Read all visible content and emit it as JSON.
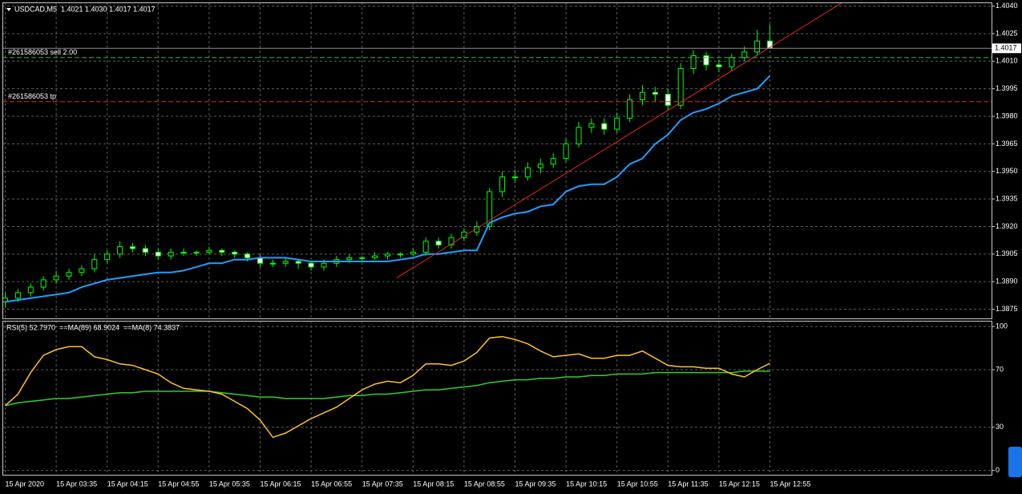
{
  "chart_data": [
    {
      "type": "candlestick",
      "title": "USDCAD,M5  1.4021 1.4030 1.4017 1.4017",
      "categories": [
        "15 Apr 2020",
        null,
        null,
        null,
        "15 Apr 03:35",
        null,
        null,
        null,
        "15 Apr 04:15",
        null,
        null,
        null,
        "15 Apr 04:55",
        null,
        null,
        null,
        "15 Apr 05:35",
        null,
        null,
        null,
        "15 Apr 06:15",
        null,
        null,
        null,
        "15 Apr 06:55",
        null,
        null,
        null,
        "15 Apr 07:35",
        null,
        null,
        null,
        "15 Apr 08:15",
        null,
        null,
        null,
        "15 Apr 08:55",
        null,
        null,
        null,
        "15 Apr 09:35",
        null,
        null,
        null,
        "15 Apr 10:15",
        null,
        null,
        null,
        "15 Apr 10:55",
        null,
        null,
        null,
        "15 Apr 11:35",
        null,
        null,
        null,
        "15 Apr 12:15",
        null,
        null,
        null,
        "15 Apr 12:55"
      ],
      "open": [
        1.3879,
        1.3881,
        1.3884,
        1.3887,
        1.3891,
        1.3893,
        1.3895,
        1.3897,
        1.3902,
        1.3905,
        1.3909,
        1.3908,
        1.3906,
        1.3904,
        1.3906,
        1.3906,
        1.3906,
        1.3907,
        1.3906,
        1.3905,
        1.3903,
        1.39,
        1.39,
        1.3901,
        1.39,
        1.3898,
        1.39,
        1.3902,
        1.3903,
        1.3903,
        1.3904,
        1.3905,
        1.3905,
        1.3906,
        1.3912,
        1.391,
        1.3914,
        1.3917,
        1.392,
        1.3939,
        1.3947,
        1.3947,
        1.3952,
        1.3954,
        1.3957,
        1.3965,
        1.3974,
        1.3976,
        1.3973,
        1.3979,
        1.3989,
        1.3993,
        1.3992,
        1.3986,
        1.4006,
        1.4013,
        1.4008,
        1.4007,
        1.4012,
        1.4015,
        1.4021
      ],
      "high": [
        1.3884,
        1.3886,
        1.3889,
        1.3893,
        1.3896,
        1.3897,
        1.3899,
        1.3905,
        1.3907,
        1.3912,
        1.3911,
        1.391,
        1.3908,
        1.3908,
        1.3908,
        1.3907,
        1.3909,
        1.3908,
        1.3907,
        1.3906,
        1.3905,
        1.3902,
        1.3903,
        1.3902,
        1.3901,
        1.3902,
        1.3904,
        1.3905,
        1.3904,
        1.3906,
        1.3906,
        1.3906,
        1.3908,
        1.3914,
        1.3914,
        1.3916,
        1.3919,
        1.3923,
        1.3941,
        1.395,
        1.3951,
        1.3955,
        1.3957,
        1.396,
        1.3968,
        1.3977,
        1.3979,
        1.3979,
        1.3982,
        1.3992,
        1.3997,
        1.3996,
        1.3995,
        1.4009,
        1.4016,
        1.4015,
        1.4011,
        1.4014,
        1.4018,
        1.4027,
        1.403
      ],
      "low": [
        1.3876,
        1.3879,
        1.3882,
        1.3885,
        1.3889,
        1.3891,
        1.3893,
        1.3895,
        1.39,
        1.3903,
        1.3906,
        1.3904,
        1.3902,
        1.3902,
        1.3904,
        1.3904,
        1.3905,
        1.3904,
        1.3903,
        1.3901,
        1.3898,
        1.3898,
        1.3898,
        1.3897,
        1.3896,
        1.3896,
        1.3898,
        1.39,
        1.3901,
        1.3902,
        1.3902,
        1.3903,
        1.3904,
        1.3904,
        1.3908,
        1.3908,
        1.3912,
        1.3915,
        1.3918,
        1.3936,
        1.3944,
        1.3945,
        1.3949,
        1.3952,
        1.3955,
        1.3963,
        1.3971,
        1.397,
        1.3971,
        1.3977,
        1.3986,
        1.3988,
        1.3983,
        1.3984,
        1.4003,
        1.4005,
        1.4004,
        1.4005,
        1.401,
        1.4013,
        1.4017
      ],
      "close": [
        1.3881,
        1.3884,
        1.3887,
        1.3891,
        1.3893,
        1.3895,
        1.3897,
        1.3902,
        1.3905,
        1.3909,
        1.3908,
        1.3906,
        1.3904,
        1.3906,
        1.3906,
        1.3906,
        1.3907,
        1.3906,
        1.3905,
        1.3903,
        1.39,
        1.39,
        1.3901,
        1.39,
        1.3898,
        1.39,
        1.3902,
        1.3903,
        1.3903,
        1.3904,
        1.3905,
        1.3905,
        1.3906,
        1.3912,
        1.391,
        1.3914,
        1.3917,
        1.392,
        1.3939,
        1.3947,
        1.3947,
        1.3952,
        1.3954,
        1.3957,
        1.3965,
        1.3974,
        1.3976,
        1.3973,
        1.3979,
        1.3989,
        1.3993,
        1.3992,
        1.3986,
        1.4006,
        1.4013,
        1.4008,
        1.4007,
        1.4012,
        1.4015,
        1.4021,
        1.4017
      ],
      "wick_color": "#00ff00",
      "up_fill": "#000000",
      "down_fill": "#ffffff",
      "lines": [
        {
          "color": "#1e9fff",
          "values": [
            1.3879,
            1.388,
            1.3881,
            1.3882,
            1.3883,
            1.3884,
            1.3887,
            1.3889,
            1.3891,
            1.3892,
            1.3893,
            1.3894,
            1.3895,
            1.3895,
            1.3896,
            1.3898,
            1.39,
            1.39,
            1.3902,
            1.3902,
            1.3903,
            1.3903,
            1.3903,
            1.3902,
            1.3901,
            1.3901,
            1.3901,
            1.3901,
            1.3901,
            1.3901,
            1.3901,
            1.3902,
            1.3903,
            1.3905,
            1.3905,
            1.3906,
            1.3907,
            1.3907,
            1.3922,
            1.3925,
            1.3927,
            1.3928,
            1.3931,
            1.3932,
            1.3939,
            1.3942,
            1.3943,
            1.3943,
            1.3947,
            1.3954,
            1.3957,
            1.3965,
            1.397,
            1.3978,
            1.3982,
            1.3984,
            1.3987,
            1.3991,
            1.3993,
            1.3995,
            1.4002
          ]
        }
      ],
      "trendline": {
        "x": [
          30.7,
          65.7
        ],
        "y": [
          1.3892,
          1.4042
        ],
        "color": "#e0281e"
      },
      "orders": [
        {
          "label": "#261586053 sell 2.00",
          "price": 1.4012,
          "color": "#3cb043"
        },
        {
          "label": "#261586053 tp",
          "price": 1.3988,
          "color": "#e0281e"
        }
      ],
      "bid": {
        "value": 1.4017,
        "label": "1.4017"
      },
      "ylim": [
        1.387,
        1.4042
      ],
      "yticks": [
        {
          "value": 1.404,
          "label": "1.4040"
        },
        {
          "value": 1.4025,
          "label": "1.4025"
        },
        {
          "value": 1.401,
          "label": "1.4010"
        },
        {
          "value": 1.3995,
          "label": "1.3995"
        },
        {
          "value": 1.398,
          "label": "1.3980"
        },
        {
          "value": 1.3965,
          "label": "1.3965"
        },
        {
          "value": 1.395,
          "label": "1.3950"
        },
        {
          "value": 1.3935,
          "label": "1.3935"
        },
        {
          "value": 1.392,
          "label": "1.3920"
        },
        {
          "value": 1.3905,
          "label": "1.3905"
        },
        {
          "value": 1.389,
          "label": "1.3890"
        },
        {
          "value": 1.3875,
          "label": "1.3875"
        }
      ],
      "grid": true
    },
    {
      "type": "line",
      "title": "RSI(5) 52.7970  ==MA(89) 68.9024  ==MA(8) 74.3837",
      "series": [
        {
          "color": "#32cd32",
          "values": [
            45,
            47,
            48,
            49,
            50,
            50,
            51,
            52,
            53,
            54,
            54,
            55,
            55,
            55,
            55,
            55,
            55,
            54,
            53,
            52,
            51,
            51,
            50,
            50,
            50,
            50,
            51,
            52,
            52,
            53,
            53,
            54,
            55,
            56,
            56,
            57,
            58,
            59,
            61,
            62,
            63,
            63,
            64,
            64,
            65,
            65,
            66,
            66,
            67,
            67,
            67,
            68,
            68,
            68,
            68,
            68,
            68,
            68,
            69,
            69,
            68.9024
          ]
        },
        {
          "color": "#ffc125",
          "values": [
            45,
            53,
            68,
            80,
            84,
            86,
            86,
            79,
            77,
            74,
            73,
            70,
            67,
            61,
            57,
            56,
            55,
            53,
            48,
            43,
            35,
            23,
            26,
            31,
            36,
            40,
            44,
            50,
            56,
            60,
            62,
            61,
            66,
            74,
            74,
            73,
            76,
            82,
            92,
            93,
            91,
            88,
            83,
            79,
            80,
            81,
            78,
            78,
            80,
            80,
            83,
            78,
            73,
            72,
            72,
            71,
            71,
            67,
            65,
            70,
            74.3837
          ]
        }
      ],
      "ylim": [
        -3,
        104
      ],
      "yticks": [
        100,
        70,
        30,
        0
      ],
      "grid": true
    }
  ]
}
